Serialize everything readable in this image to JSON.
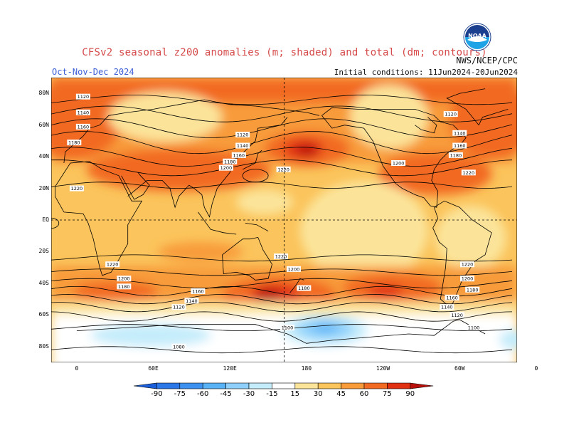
{
  "header": {
    "title": "CFSv2 seasonal z200 anomalies (m; shaded) and total (dm; contours)",
    "agency": "NWS/NCEP/CPC",
    "season": "Oct-Nov-Dec 2024",
    "initial_conditions": "Initial conditions: 11Jun2024-20Jun2024",
    "logo_text": "NOAA"
  },
  "map": {
    "lat_ticks": [
      "80N",
      "60N",
      "40N",
      "20N",
      "EQ",
      "20S",
      "40S",
      "60S",
      "80S"
    ],
    "lon_ticks": [
      "0",
      "60E",
      "120E",
      "180",
      "120W",
      "60W",
      "0"
    ],
    "contour_labels": [
      {
        "text": "1120",
        "lon": 5,
        "lat": 78
      },
      {
        "text": "1140",
        "lon": 5,
        "lat": 68
      },
      {
        "text": "1160",
        "lon": 5,
        "lat": 59
      },
      {
        "text": "1180",
        "lon": -2,
        "lat": 49
      },
      {
        "text": "1220",
        "lon": 0,
        "lat": 20
      },
      {
        "text": "1120",
        "lon": 130,
        "lat": 54
      },
      {
        "text": "1140",
        "lon": 130,
        "lat": 47
      },
      {
        "text": "1160",
        "lon": 127,
        "lat": 41
      },
      {
        "text": "1180",
        "lon": 120,
        "lat": 37
      },
      {
        "text": "1200",
        "lon": 117,
        "lat": 33
      },
      {
        "text": "1220",
        "lon": 162,
        "lat": 32
      },
      {
        "text": "1200",
        "lon": -108,
        "lat": 36
      },
      {
        "text": "1120",
        "lon": -67,
        "lat": 67
      },
      {
        "text": "1140",
        "lon": -60,
        "lat": 55
      },
      {
        "text": "1160",
        "lon": -60,
        "lat": 47
      },
      {
        "text": "1180",
        "lon": -63,
        "lat": 41
      },
      {
        "text": "1220",
        "lon": -53,
        "lat": 30
      },
      {
        "text": "1220",
        "lon": 28,
        "lat": -28
      },
      {
        "text": "1200",
        "lon": 37,
        "lat": -37
      },
      {
        "text": "1180",
        "lon": 37,
        "lat": -42
      },
      {
        "text": "1160",
        "lon": 95,
        "lat": -45
      },
      {
        "text": "1140",
        "lon": 90,
        "lat": -51
      },
      {
        "text": "1120",
        "lon": 80,
        "lat": -55
      },
      {
        "text": "1220",
        "lon": 160,
        "lat": -23
      },
      {
        "text": "1200",
        "lon": 170,
        "lat": -31
      },
      {
        "text": "1180",
        "lon": 178,
        "lat": -43
      },
      {
        "text": "1220",
        "lon": -54,
        "lat": -28
      },
      {
        "text": "1200",
        "lon": -54,
        "lat": -37
      },
      {
        "text": "1180",
        "lon": -50,
        "lat": -44
      },
      {
        "text": "1160",
        "lon": -66,
        "lat": -49
      },
      {
        "text": "1140",
        "lon": -70,
        "lat": -55
      },
      {
        "text": "1120",
        "lon": -62,
        "lat": -60
      },
      {
        "text": "1100",
        "lon": 165,
        "lat": -68
      },
      {
        "text": "1100",
        "lon": -49,
        "lat": -68
      },
      {
        "text": "1080",
        "lon": 80,
        "lat": -80
      }
    ]
  },
  "legend": {
    "levels": [
      "-90",
      "-75",
      "-60",
      "-45",
      "-30",
      "-15",
      "15",
      "30",
      "45",
      "60",
      "75",
      "90"
    ],
    "colors": [
      "#1a5fd9",
      "#2b77e8",
      "#3d92f0",
      "#5ab2f6",
      "#8ed0fb",
      "#c4ecfb",
      "#ffffff",
      "#fbe49a",
      "#fbc45c",
      "#f89b3a",
      "#f26b22",
      "#e03212",
      "#b8100a"
    ]
  }
}
